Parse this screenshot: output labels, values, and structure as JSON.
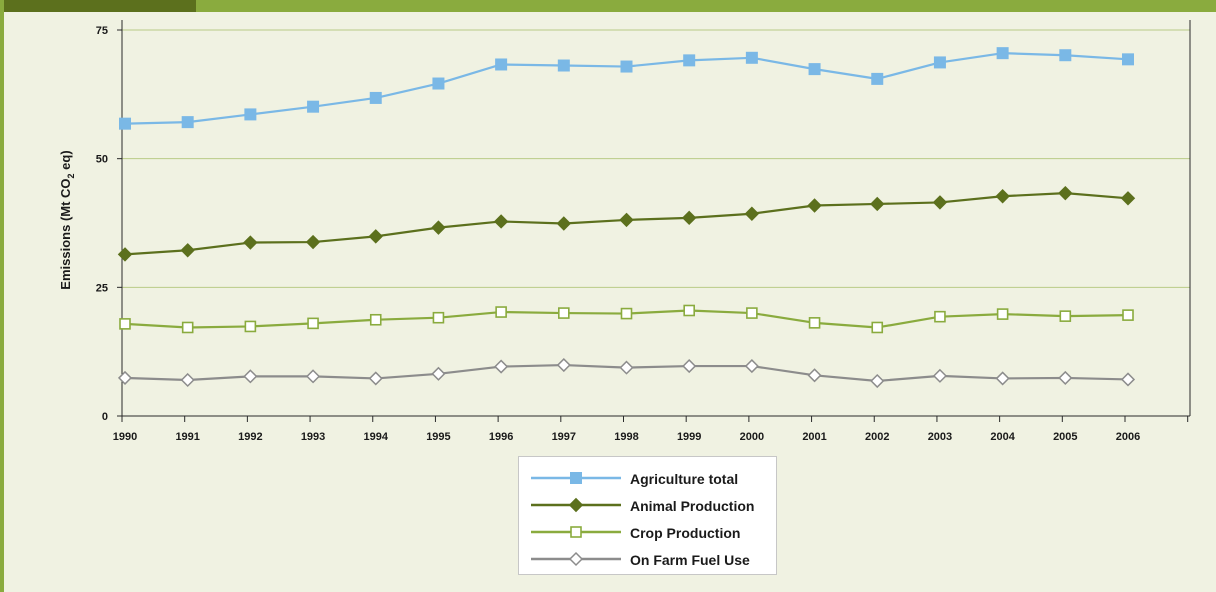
{
  "chart_data": {
    "type": "line",
    "title": "",
    "xlabel": "",
    "ylabel": "Emissions (Mt CO2 eq)",
    "ylabel_parts": {
      "pre": "Emissions (Mt CO",
      "sub": "2",
      "post": " eq)"
    },
    "x": [
      "1990",
      "1991",
      "1992",
      "1993",
      "1994",
      "1995",
      "1996",
      "1997",
      "1998",
      "1999",
      "2000",
      "2001",
      "2002",
      "2003",
      "2004",
      "2005",
      "2006"
    ],
    "ylim": [
      0,
      75
    ],
    "yticks": [
      "0",
      "25",
      "50",
      "75"
    ],
    "ytick_values": [
      0,
      25,
      50,
      75
    ],
    "grid": "horizontal",
    "legend_position": "bottom-center",
    "series": [
      {
        "name": "Agriculture total",
        "color": "#7ab8e6",
        "marker": "square-filled",
        "values": [
          56.8,
          57.1,
          58.6,
          60.1,
          61.8,
          64.6,
          68.3,
          68.1,
          67.9,
          69.1,
          69.6,
          67.4,
          65.5,
          68.7,
          70.5,
          70.1,
          69.3
        ]
      },
      {
        "name": "Animal Production",
        "color": "#5c701d",
        "marker": "diamond-filled",
        "values": [
          31.4,
          32.2,
          33.7,
          33.8,
          34.9,
          36.6,
          37.8,
          37.4,
          38.1,
          38.5,
          39.3,
          40.9,
          41.2,
          41.5,
          42.7,
          43.3,
          42.3
        ]
      },
      {
        "name": "Crop Production",
        "color": "#8aab3e",
        "marker": "square-open",
        "values": [
          17.9,
          17.2,
          17.4,
          18.0,
          18.7,
          19.1,
          20.2,
          20.0,
          19.9,
          20.5,
          20.0,
          18.1,
          17.2,
          19.3,
          19.8,
          19.4,
          19.6
        ]
      },
      {
        "name": "On Farm Fuel Use",
        "color": "#8c8c8c",
        "marker": "diamond-open",
        "values": [
          7.4,
          7.0,
          7.7,
          7.7,
          7.3,
          8.2,
          9.6,
          9.9,
          9.4,
          9.7,
          9.7,
          7.9,
          6.8,
          7.8,
          7.3,
          7.4,
          7.1
        ]
      }
    ]
  }
}
